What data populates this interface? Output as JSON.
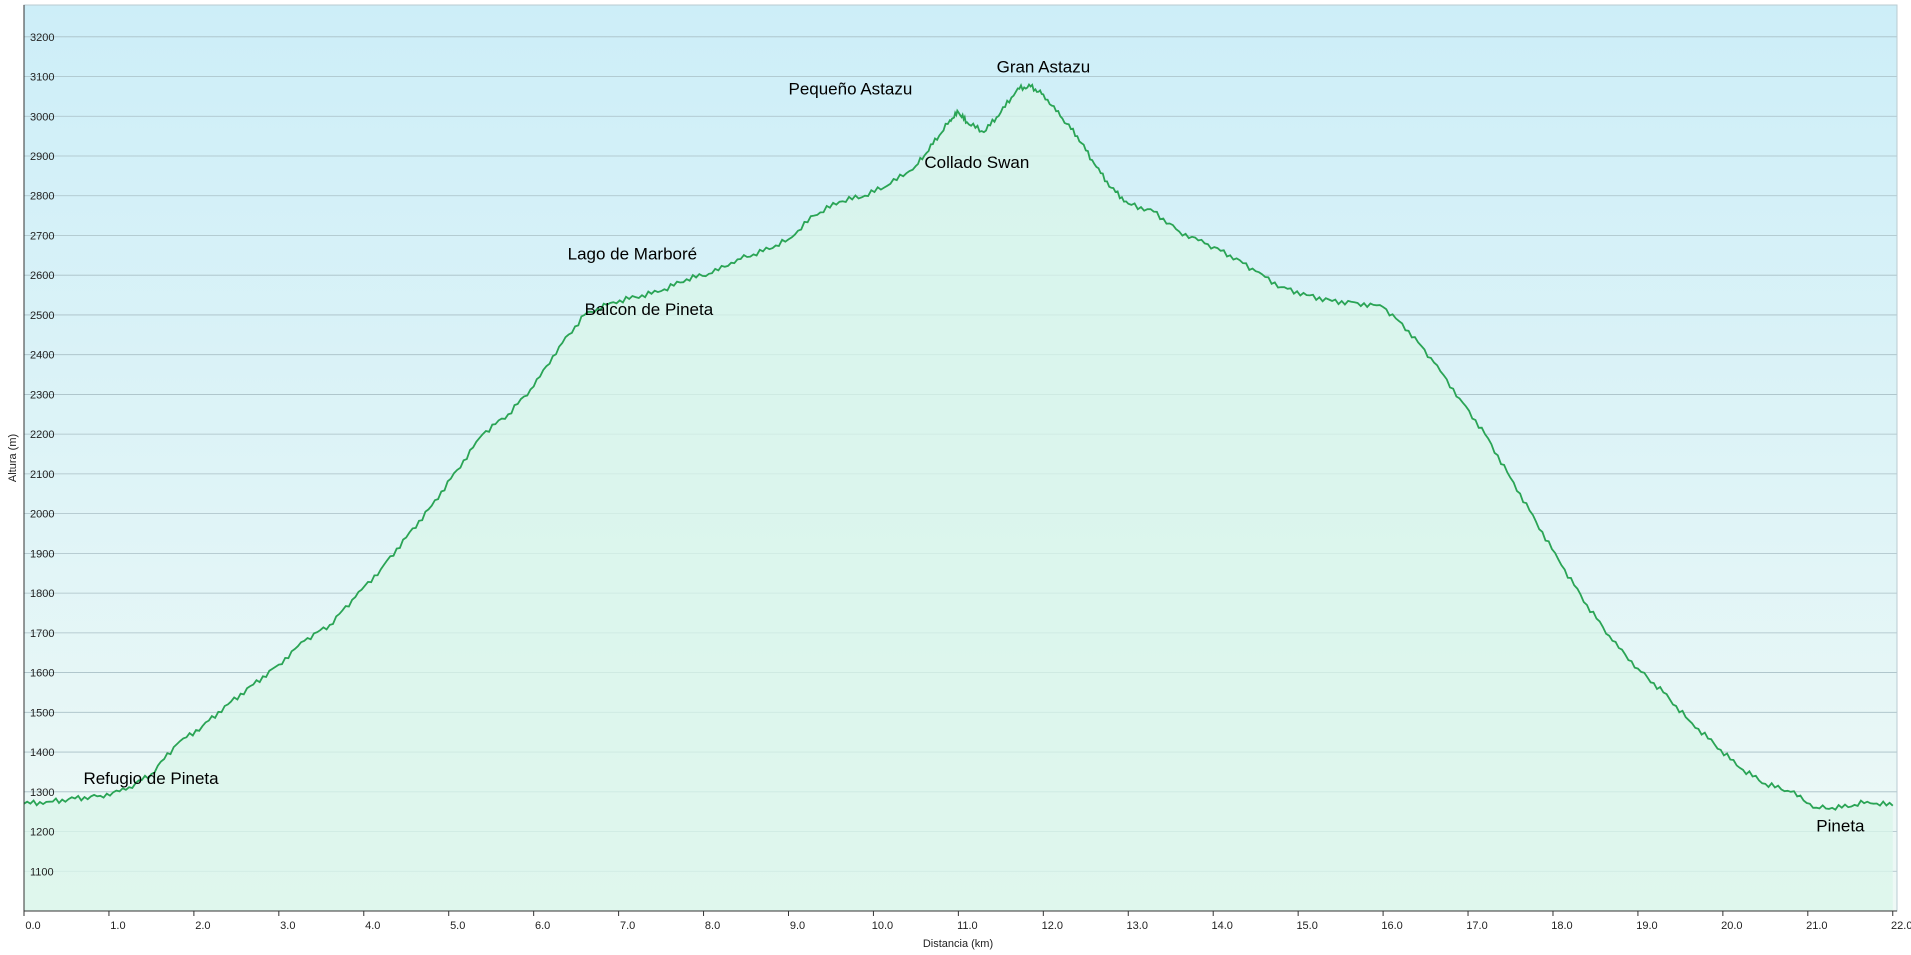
{
  "chart_data": {
    "type": "area",
    "xlabel": "Distancia  (km)",
    "ylabel": "Altura (m)",
    "xlim": [
      0,
      22.05
    ],
    "ylim": [
      1000,
      3280
    ],
    "x_ticks": [
      0,
      1,
      2,
      3,
      4,
      5,
      6,
      7,
      8,
      9,
      10,
      11,
      12,
      13,
      14,
      15,
      16,
      17,
      18,
      19,
      20,
      21,
      22
    ],
    "y_ticks": [
      1100,
      1200,
      1300,
      1400,
      1500,
      1600,
      1700,
      1800,
      1900,
      2000,
      2100,
      2200,
      2300,
      2400,
      2500,
      2600,
      2700,
      2800,
      2900,
      3000,
      3100,
      3200
    ],
    "grid": "horizontal",
    "colors": {
      "line": "#2aa455",
      "fill": "#d9f5ea",
      "bg_top": "#cdeef8",
      "bg_bottom": "#eef9f6",
      "grid": "#a9bfc6"
    },
    "x": [
      0,
      0.3,
      0.6,
      0.9,
      1.2,
      1.5,
      1.8,
      2.1,
      2.4,
      2.7,
      3.0,
      3.3,
      3.6,
      3.9,
      4.2,
      4.5,
      4.8,
      5.1,
      5.4,
      5.7,
      6.0,
      6.3,
      6.6,
      6.9,
      7.2,
      7.5,
      7.8,
      8.1,
      8.4,
      8.7,
      9.0,
      9.3,
      9.6,
      9.9,
      10.2,
      10.5,
      10.7,
      10.9,
      11.0,
      11.1,
      11.3,
      11.5,
      11.7,
      11.85,
      12.0,
      12.2,
      12.4,
      12.6,
      12.8,
      13.0,
      13.3,
      13.6,
      13.9,
      14.2,
      14.5,
      14.8,
      15.1,
      15.4,
      15.7,
      16.0,
      16.3,
      16.6,
      16.9,
      17.2,
      17.5,
      17.8,
      18.1,
      18.4,
      18.7,
      19.0,
      19.3,
      19.6,
      19.9,
      20.2,
      20.5,
      20.8,
      21.1,
      21.4,
      21.7,
      22.0
    ],
    "values": [
      1270,
      1275,
      1283,
      1290,
      1305,
      1345,
      1420,
      1465,
      1520,
      1570,
      1620,
      1680,
      1720,
      1790,
      1860,
      1940,
      2020,
      2110,
      2200,
      2250,
      2320,
      2420,
      2500,
      2530,
      2545,
      2560,
      2590,
      2605,
      2640,
      2660,
      2690,
      2750,
      2785,
      2800,
      2830,
      2875,
      2930,
      2990,
      3010,
      2985,
      2960,
      3010,
      3070,
      3075,
      3055,
      3000,
      2950,
      2880,
      2820,
      2780,
      2760,
      2710,
      2680,
      2650,
      2610,
      2570,
      2550,
      2535,
      2530,
      2520,
      2460,
      2380,
      2290,
      2200,
      2090,
      1980,
      1870,
      1770,
      1680,
      1610,
      1550,
      1480,
      1420,
      1360,
      1320,
      1300,
      1260,
      1260,
      1275,
      1265
    ],
    "annotations": [
      {
        "text": "Gran Astazu",
        "x": 11.45,
        "y": 3110
      },
      {
        "text": "Pequeño Astazu",
        "x": 9.0,
        "y": 3055
      },
      {
        "text": "Collado  Swan",
        "x": 10.6,
        "y": 2870
      },
      {
        "text": "Lago de Marboré",
        "x": 6.4,
        "y": 2640
      },
      {
        "text": "Balcon de Pineta",
        "x": 6.6,
        "y": 2500
      },
      {
        "text": "Refugio de Pineta",
        "x": 0.7,
        "y": 1320
      },
      {
        "text": "Pineta",
        "x": 21.1,
        "y": 1200
      }
    ]
  }
}
